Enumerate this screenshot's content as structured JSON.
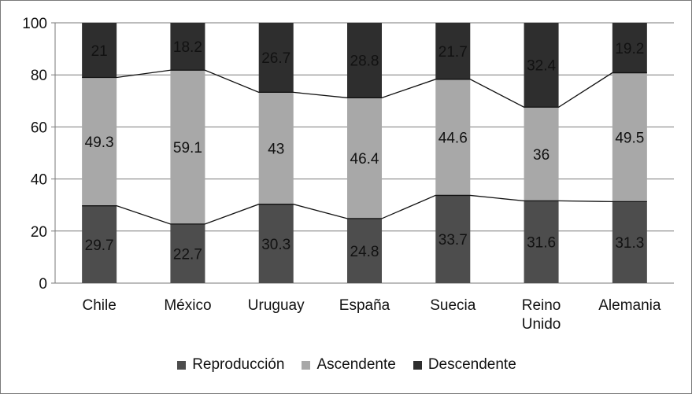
{
  "chart_data": {
    "type": "bar",
    "stacked": true,
    "categories": [
      "Chile",
      "México",
      "Uruguay",
      "España",
      "Suecia",
      "Reino Unido",
      "Alemania"
    ],
    "category_lines": [
      [
        "Chile"
      ],
      [
        "México"
      ],
      [
        "Uruguay"
      ],
      [
        "España"
      ],
      [
        "Suecia"
      ],
      [
        "Reino",
        "Unido"
      ],
      [
        "Alemania"
      ]
    ],
    "series": [
      {
        "name": "Reproducción",
        "color": "#4d4d4d",
        "values": [
          29.7,
          22.7,
          30.3,
          24.8,
          33.7,
          31.6,
          31.3
        ]
      },
      {
        "name": "Ascendente",
        "color": "#a8a8a8",
        "values": [
          49.3,
          59.1,
          43,
          46.4,
          44.6,
          36,
          49.5
        ]
      },
      {
        "name": "Descendente",
        "color": "#2e2e2e",
        "values": [
          21,
          18.2,
          26.7,
          28.8,
          21.7,
          32.4,
          19.2
        ]
      }
    ],
    "ylim": [
      0,
      100
    ],
    "yticks": [
      0,
      20,
      40,
      60,
      80,
      100
    ],
    "grid": true,
    "series_lines": true,
    "legend_position": "bottom"
  }
}
